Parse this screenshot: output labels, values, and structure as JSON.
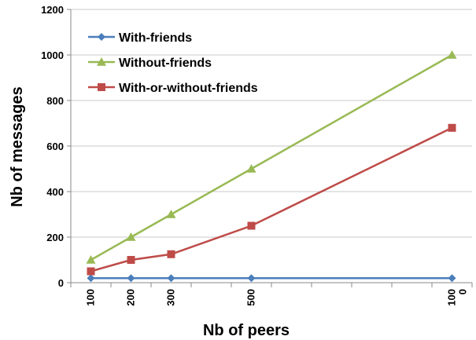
{
  "chart_data": {
    "type": "line",
    "title": "",
    "xlabel": "Nb of peers",
    "ylabel": "Nb of messages",
    "x": [
      100,
      200,
      300,
      500,
      1000
    ],
    "x_tick_labels": [
      "100",
      "200",
      "300",
      "500",
      "100\n0"
    ],
    "xlim": [
      50,
      1050
    ],
    "ylim": [
      0,
      1200
    ],
    "y_ticks": [
      0,
      200,
      400,
      600,
      800,
      1000,
      1200
    ],
    "grid": "horizontal",
    "legend_position": "top-left",
    "series": [
      {
        "name": "With-friends",
        "values": [
          20,
          20,
          20,
          20,
          20
        ],
        "color": "#4a7ebb",
        "marker": "diamond"
      },
      {
        "name": "Without-friends",
        "values": [
          100,
          200,
          300,
          500,
          1000
        ],
        "color": "#98b954",
        "marker": "triangle"
      },
      {
        "name": "With-or-without-friends",
        "values": [
          50,
          100,
          125,
          250,
          680
        ],
        "color": "#be4b48",
        "marker": "square"
      }
    ]
  }
}
